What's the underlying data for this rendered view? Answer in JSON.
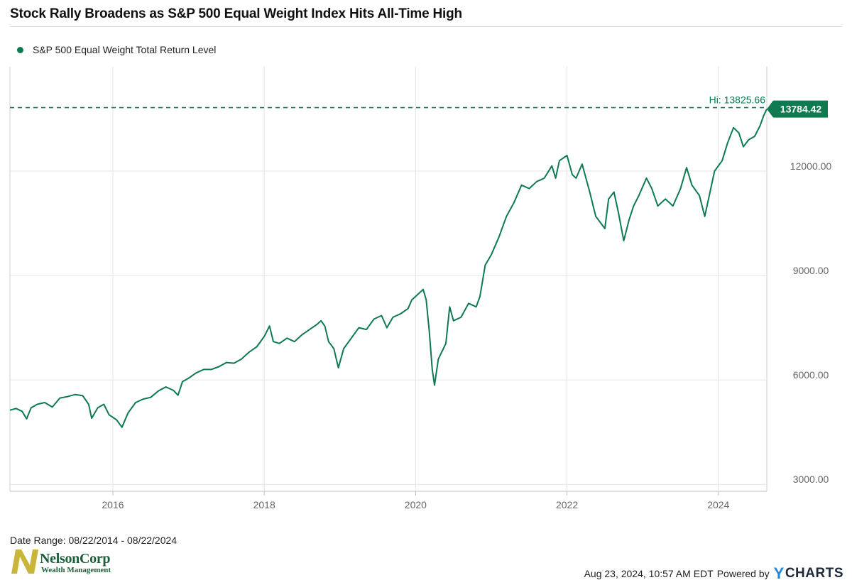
{
  "title": "Stock Rally Broadens as S&P 500 Equal Weight Index Hits All-Time High",
  "legend": {
    "label": "S&P 500 Equal Weight Total Return Level"
  },
  "footer": {
    "date_range": "Date Range: 08/22/2014 - 08/22/2024",
    "timestamp": "Aug 23, 2024, 10:57 AM EDT",
    "powered_by": "Powered by",
    "ycharts_y": "Y",
    "ycharts_rest": "CHARTS"
  },
  "logo": {
    "name": "NelsonCorp",
    "sub": "Wealth Management"
  },
  "colors": {
    "series": "#0d7a50",
    "grid": "#e3e3e3",
    "axis_text": "#666666",
    "logo_gold": "#c8b53a",
    "logo_green": "#1b5e3a"
  },
  "chart_data": {
    "type": "line",
    "series": [
      {
        "name": "S&P 500 Equal Weight Total Return Level",
        "points": [
          [
            2014.64,
            5130
          ],
          [
            2014.72,
            5180
          ],
          [
            2014.8,
            5100
          ],
          [
            2014.86,
            4880
          ],
          [
            2014.92,
            5200
          ],
          [
            2015.0,
            5300
          ],
          [
            2015.1,
            5350
          ],
          [
            2015.2,
            5220
          ],
          [
            2015.3,
            5480
          ],
          [
            2015.4,
            5520
          ],
          [
            2015.5,
            5580
          ],
          [
            2015.6,
            5550
          ],
          [
            2015.68,
            5300
          ],
          [
            2015.72,
            4900
          ],
          [
            2015.8,
            5200
          ],
          [
            2015.88,
            5300
          ],
          [
            2015.95,
            5000
          ],
          [
            2016.05,
            4850
          ],
          [
            2016.12,
            4640
          ],
          [
            2016.2,
            5050
          ],
          [
            2016.3,
            5350
          ],
          [
            2016.4,
            5450
          ],
          [
            2016.5,
            5500
          ],
          [
            2016.6,
            5680
          ],
          [
            2016.7,
            5800
          ],
          [
            2016.8,
            5700
          ],
          [
            2016.86,
            5560
          ],
          [
            2016.92,
            5950
          ],
          [
            2017.0,
            6050
          ],
          [
            2017.1,
            6200
          ],
          [
            2017.2,
            6300
          ],
          [
            2017.3,
            6300
          ],
          [
            2017.4,
            6380
          ],
          [
            2017.5,
            6500
          ],
          [
            2017.6,
            6480
          ],
          [
            2017.7,
            6600
          ],
          [
            2017.8,
            6800
          ],
          [
            2017.9,
            6950
          ],
          [
            2018.0,
            7250
          ],
          [
            2018.07,
            7550
          ],
          [
            2018.12,
            7100
          ],
          [
            2018.2,
            7050
          ],
          [
            2018.3,
            7200
          ],
          [
            2018.4,
            7100
          ],
          [
            2018.5,
            7300
          ],
          [
            2018.6,
            7450
          ],
          [
            2018.7,
            7600
          ],
          [
            2018.75,
            7700
          ],
          [
            2018.8,
            7550
          ],
          [
            2018.85,
            7100
          ],
          [
            2018.92,
            6900
          ],
          [
            2018.98,
            6350
          ],
          [
            2019.05,
            6900
          ],
          [
            2019.15,
            7200
          ],
          [
            2019.25,
            7500
          ],
          [
            2019.35,
            7450
          ],
          [
            2019.45,
            7750
          ],
          [
            2019.55,
            7850
          ],
          [
            2019.62,
            7500
          ],
          [
            2019.7,
            7800
          ],
          [
            2019.8,
            7900
          ],
          [
            2019.9,
            8050
          ],
          [
            2019.95,
            8300
          ],
          [
            2020.0,
            8400
          ],
          [
            2020.1,
            8600
          ],
          [
            2020.14,
            8300
          ],
          [
            2020.18,
            7400
          ],
          [
            2020.22,
            6300
          ],
          [
            2020.25,
            5850
          ],
          [
            2020.3,
            6600
          ],
          [
            2020.4,
            7050
          ],
          [
            2020.45,
            8100
          ],
          [
            2020.5,
            7700
          ],
          [
            2020.6,
            7800
          ],
          [
            2020.7,
            8200
          ],
          [
            2020.8,
            8100
          ],
          [
            2020.85,
            8400
          ],
          [
            2020.92,
            9300
          ],
          [
            2021.0,
            9600
          ],
          [
            2021.1,
            10100
          ],
          [
            2021.2,
            10700
          ],
          [
            2021.3,
            11100
          ],
          [
            2021.4,
            11600
          ],
          [
            2021.5,
            11500
          ],
          [
            2021.6,
            11700
          ],
          [
            2021.7,
            11800
          ],
          [
            2021.8,
            12150
          ],
          [
            2021.85,
            11800
          ],
          [
            2021.9,
            12300
          ],
          [
            2022.0,
            12450
          ],
          [
            2022.07,
            11900
          ],
          [
            2022.12,
            11800
          ],
          [
            2022.2,
            12200
          ],
          [
            2022.3,
            11400
          ],
          [
            2022.38,
            10700
          ],
          [
            2022.45,
            10500
          ],
          [
            2022.5,
            10350
          ],
          [
            2022.55,
            11200
          ],
          [
            2022.62,
            11400
          ],
          [
            2022.68,
            10800
          ],
          [
            2022.75,
            10000
          ],
          [
            2022.82,
            10600
          ],
          [
            2022.88,
            11000
          ],
          [
            2022.95,
            11300
          ],
          [
            2023.05,
            11800
          ],
          [
            2023.12,
            11500
          ],
          [
            2023.2,
            11000
          ],
          [
            2023.3,
            11200
          ],
          [
            2023.4,
            11000
          ],
          [
            2023.5,
            11500
          ],
          [
            2023.58,
            12100
          ],
          [
            2023.65,
            11600
          ],
          [
            2023.75,
            11300
          ],
          [
            2023.82,
            10700
          ],
          [
            2023.88,
            11300
          ],
          [
            2023.95,
            12000
          ],
          [
            2024.05,
            12300
          ],
          [
            2024.12,
            12800
          ],
          [
            2024.2,
            13250
          ],
          [
            2024.27,
            13100
          ],
          [
            2024.33,
            12700
          ],
          [
            2024.4,
            12900
          ],
          [
            2024.48,
            13000
          ],
          [
            2024.55,
            13300
          ],
          [
            2024.6,
            13600
          ],
          [
            2024.64,
            13784.42
          ]
        ]
      }
    ],
    "high_label": "Hi: 13825.66",
    "high_value": 13825.66,
    "last_label": "13784.42",
    "last_value": 13784.42,
    "x_ticks": [
      "2016",
      "2018",
      "2020",
      "2022",
      "2024"
    ],
    "x_tick_values": [
      2016,
      2018,
      2020,
      2022,
      2024
    ],
    "y_ticks": [
      "3000.00",
      "6000.00",
      "9000.00",
      "12000.00"
    ],
    "y_tick_values": [
      3000,
      6000,
      9000,
      12000
    ],
    "xlim": [
      2014.64,
      2024.64
    ],
    "ylim": [
      2800,
      15000
    ],
    "grid": true,
    "y_axis_side": "right",
    "legend_position": "top-left"
  }
}
